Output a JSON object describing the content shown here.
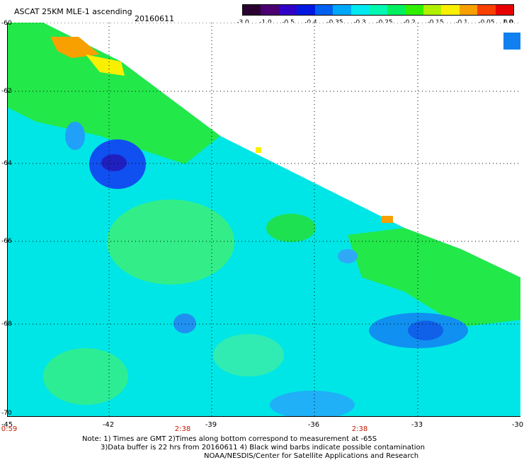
{
  "header": {
    "title": "ASCAT 25KM MLE-1 ascending",
    "date": "20160611"
  },
  "colorbar": {
    "labels": [
      "-3.0",
      "-1.0",
      "-0.5",
      "-0.4",
      "-0.35",
      "-0.3",
      "-0.25",
      "-0.2",
      "-0.15",
      "-0.1",
      "-0.05",
      "0.0",
      "1.0"
    ],
    "colors": [
      "#2a0030",
      "#4a0070",
      "#3000c8",
      "#0018e0",
      "#0060f0",
      "#00a8f8",
      "#00e8f0",
      "#00f8b0",
      "#00f060",
      "#30f000",
      "#b0f000",
      "#f8f000",
      "#f8a000",
      "#f84000",
      "#e80000"
    ]
  },
  "map": {
    "lat_labels": [
      "-60",
      "-62",
      "-64",
      "-66",
      "-68",
      "-70"
    ],
    "lon_labels": [
      "-45",
      "-42",
      "-39",
      "-36",
      "-33",
      "-30"
    ],
    "time_labels": [
      "0:59",
      "2:38",
      "2:38"
    ]
  },
  "notes": {
    "line1": "Note: 1) Times are GMT 2)Times along bottom correspond to measurement at -65S",
    "line2": "3)Data buffer is 22 hrs from 20160611 4) Black wind barbs indicate possible contamination",
    "line3": "NOAA/NESDIS/Center for Satellite Applications and Research"
  }
}
